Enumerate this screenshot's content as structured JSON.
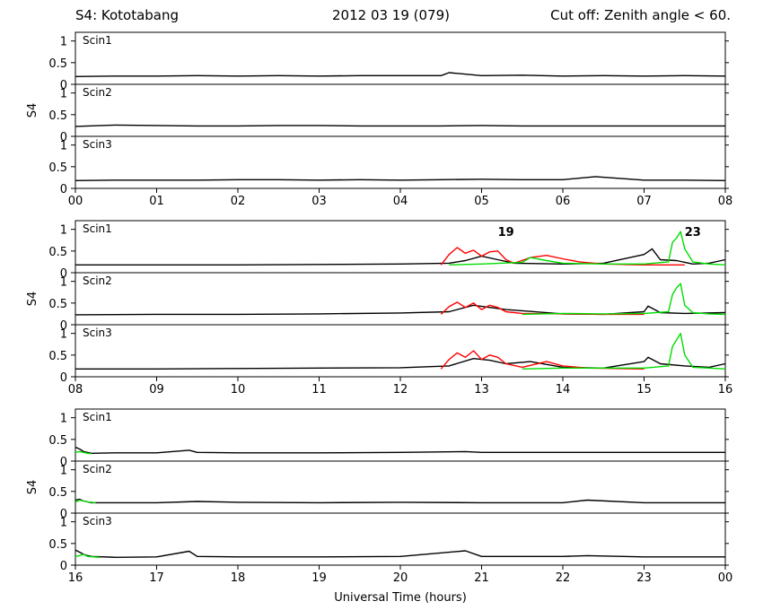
{
  "header": {
    "station": "S4: Kototabang",
    "date": "2012 03 19 (079)",
    "cutoff": "Cut off: Zenith angle < 60."
  },
  "chart_data": {
    "type": "line",
    "ylabel": "S4",
    "xlabel": "Universal Time (hours)",
    "ylim": [
      0,
      1.2
    ],
    "yticks": [
      "0",
      "0.5",
      "1"
    ],
    "colors": {
      "baseline": "#000000",
      "prn19": "#ff0000",
      "prn23": "#00dd00"
    },
    "blocks": [
      {
        "xticks": [
          "00",
          "01",
          "02",
          "03",
          "04",
          "05",
          "06",
          "07",
          "08"
        ],
        "xrange": [
          0,
          8
        ],
        "panels": [
          {
            "label": "Scin1",
            "series": [
              {
                "name": "",
                "color": "#000000",
                "x": [
                  0,
                  0.5,
                  1,
                  1.5,
                  2,
                  2.5,
                  3,
                  3.5,
                  4,
                  4.5,
                  4.6,
                  5,
                  5.5,
                  6,
                  6.5,
                  7,
                  7.5,
                  8
                ],
                "y": [
                  0.18,
                  0.19,
                  0.19,
                  0.2,
                  0.19,
                  0.2,
                  0.19,
                  0.2,
                  0.2,
                  0.2,
                  0.27,
                  0.2,
                  0.21,
                  0.19,
                  0.2,
                  0.19,
                  0.2,
                  0.19
                ]
              }
            ]
          },
          {
            "label": "Scin2",
            "series": [
              {
                "name": "",
                "color": "#000000",
                "x": [
                  0,
                  0.5,
                  1,
                  1.5,
                  2,
                  2.5,
                  3,
                  3.5,
                  4,
                  4.5,
                  5,
                  5.5,
                  6,
                  6.5,
                  7,
                  7.5,
                  8
                ],
                "y": [
                  0.23,
                  0.26,
                  0.25,
                  0.24,
                  0.24,
                  0.25,
                  0.25,
                  0.24,
                  0.24,
                  0.24,
                  0.25,
                  0.24,
                  0.24,
                  0.24,
                  0.24,
                  0.24,
                  0.24
                ]
              }
            ]
          },
          {
            "label": "Scin3",
            "series": [
              {
                "name": "",
                "color": "#000000",
                "x": [
                  0,
                  0.5,
                  1,
                  1.5,
                  2,
                  2.5,
                  3,
                  3.5,
                  4,
                  4.5,
                  5,
                  5.5,
                  6,
                  6.4,
                  7,
                  7.5,
                  8
                ],
                "y": [
                  0.18,
                  0.19,
                  0.19,
                  0.19,
                  0.2,
                  0.2,
                  0.19,
                  0.2,
                  0.19,
                  0.2,
                  0.21,
                  0.2,
                  0.2,
                  0.27,
                  0.19,
                  0.19,
                  0.18
                ]
              }
            ]
          }
        ]
      },
      {
        "xticks": [
          "08",
          "09",
          "10",
          "11",
          "12",
          "13",
          "14",
          "15",
          "16"
        ],
        "xrange": [
          8,
          16
        ],
        "annotations": [
          {
            "text": "19",
            "color": "#ff0000",
            "x": 13.2,
            "y": 0.85
          },
          {
            "text": "23",
            "color": "#00dd00",
            "x": 15.5,
            "y": 0.85
          }
        ],
        "panels": [
          {
            "label": "Scin1",
            "series": [
              {
                "name": "",
                "color": "#000000",
                "x": [
                  8,
                  9,
                  10,
                  11,
                  12,
                  12.6,
                  12.8,
                  13,
                  13.2,
                  13.4,
                  14,
                  14.5,
                  15,
                  15.1,
                  15.2,
                  15.4,
                  15.6,
                  15.8,
                  16
                ],
                "y": [
                  0.18,
                  0.18,
                  0.18,
                  0.19,
                  0.2,
                  0.22,
                  0.28,
                  0.38,
                  0.3,
                  0.22,
                  0.2,
                  0.22,
                  0.42,
                  0.55,
                  0.3,
                  0.28,
                  0.2,
                  0.22,
                  0.3
                ]
              },
              {
                "name": "",
                "color": "#ff0000",
                "x": [
                  12.5,
                  12.6,
                  12.7,
                  12.8,
                  12.9,
                  13,
                  13.1,
                  13.2,
                  13.3,
                  13.4,
                  13.6,
                  13.8,
                  14,
                  14.2,
                  14.5,
                  15,
                  15.5
                ],
                "y": [
                  0.18,
                  0.42,
                  0.58,
                  0.45,
                  0.52,
                  0.38,
                  0.48,
                  0.5,
                  0.3,
                  0.22,
                  0.35,
                  0.4,
                  0.32,
                  0.25,
                  0.2,
                  0.18,
                  0.18
                ]
              },
              {
                "name": "",
                "color": "#00dd00",
                "x": [
                  12.6,
                  13,
                  13.5,
                  13.6,
                  13.8,
                  14,
                  14.5,
                  15,
                  15.3,
                  15.35,
                  15.4,
                  15.45,
                  15.5,
                  15.6,
                  15.8,
                  16
                ],
                "y": [
                  0.18,
                  0.2,
                  0.24,
                  0.35,
                  0.28,
                  0.22,
                  0.2,
                  0.2,
                  0.25,
                  0.7,
                  0.8,
                  0.95,
                  0.55,
                  0.25,
                  0.2,
                  0.18
                ]
              }
            ]
          },
          {
            "label": "Scin2",
            "series": [
              {
                "name": "",
                "color": "#000000",
                "x": [
                  8,
                  9,
                  10,
                  11,
                  12,
                  12.6,
                  12.9,
                  13.1,
                  13.3,
                  14,
                  14.5,
                  15,
                  15.05,
                  15.2,
                  15.5,
                  16
                ],
                "y": [
                  0.23,
                  0.24,
                  0.24,
                  0.25,
                  0.27,
                  0.3,
                  0.45,
                  0.4,
                  0.35,
                  0.25,
                  0.24,
                  0.3,
                  0.43,
                  0.28,
                  0.26,
                  0.28
                ]
              },
              {
                "name": "",
                "color": "#ff0000",
                "x": [
                  12.5,
                  12.6,
                  12.7,
                  12.8,
                  12.9,
                  13,
                  13.1,
                  13.2,
                  13.3,
                  13.5,
                  14,
                  14.5,
                  15
                ],
                "y": [
                  0.24,
                  0.42,
                  0.52,
                  0.4,
                  0.5,
                  0.35,
                  0.45,
                  0.4,
                  0.3,
                  0.26,
                  0.25,
                  0.24,
                  0.24
                ]
              },
              {
                "name": "",
                "color": "#00dd00",
                "x": [
                  13.5,
                  14,
                  14.5,
                  15,
                  15.3,
                  15.35,
                  15.4,
                  15.45,
                  15.5,
                  15.6,
                  15.8,
                  16
                ],
                "y": [
                  0.24,
                  0.26,
                  0.25,
                  0.26,
                  0.3,
                  0.7,
                  0.85,
                  0.95,
                  0.45,
                  0.28,
                  0.25,
                  0.24
                ]
              }
            ]
          },
          {
            "label": "Scin3",
            "series": [
              {
                "name": "",
                "color": "#000000",
                "x": [
                  8,
                  9,
                  10,
                  11,
                  12,
                  12.6,
                  12.9,
                  13.1,
                  13.3,
                  13.6,
                  14,
                  14.5,
                  15,
                  15.05,
                  15.2,
                  15.5,
                  15.8,
                  16
                ],
                "y": [
                  0.18,
                  0.18,
                  0.19,
                  0.2,
                  0.21,
                  0.25,
                  0.42,
                  0.38,
                  0.3,
                  0.35,
                  0.22,
                  0.2,
                  0.35,
                  0.45,
                  0.3,
                  0.25,
                  0.22,
                  0.3
                ]
              },
              {
                "name": "",
                "color": "#ff0000",
                "x": [
                  12.5,
                  12.6,
                  12.7,
                  12.8,
                  12.9,
                  13,
                  13.1,
                  13.2,
                  13.3,
                  13.5,
                  13.8,
                  14,
                  14.3,
                  15
                ],
                "y": [
                  0.18,
                  0.4,
                  0.55,
                  0.45,
                  0.6,
                  0.4,
                  0.5,
                  0.45,
                  0.3,
                  0.22,
                  0.35,
                  0.25,
                  0.2,
                  0.18
                ]
              },
              {
                "name": "",
                "color": "#00dd00",
                "x": [
                  13.5,
                  14,
                  14.5,
                  15,
                  15.3,
                  15.35,
                  15.4,
                  15.45,
                  15.5,
                  15.6,
                  15.8,
                  16
                ],
                "y": [
                  0.18,
                  0.2,
                  0.2,
                  0.2,
                  0.25,
                  0.7,
                  0.85,
                  1.0,
                  0.5,
                  0.22,
                  0.2,
                  0.18
                ]
              }
            ]
          }
        ]
      },
      {
        "xticks": [
          "16",
          "17",
          "18",
          "19",
          "20",
          "21",
          "22",
          "23",
          "00"
        ],
        "xrange": [
          16,
          24
        ],
        "panels": [
          {
            "label": "Scin1",
            "series": [
              {
                "name": "",
                "color": "#000000",
                "x": [
                  16,
                  16.05,
                  16.1,
                  16.2,
                  16.5,
                  17,
                  17.4,
                  17.5,
                  18,
                  19,
                  20,
                  20.8,
                  21,
                  22,
                  23,
                  24
                ],
                "y": [
                  0.32,
                  0.28,
                  0.22,
                  0.18,
                  0.19,
                  0.19,
                  0.25,
                  0.2,
                  0.19,
                  0.19,
                  0.2,
                  0.22,
                  0.2,
                  0.2,
                  0.2,
                  0.2
                ]
              },
              {
                "name": "",
                "color": "#00dd00",
                "x": [
                  16,
                  16.05,
                  16.1,
                  16.15,
                  16.2
                ],
                "y": [
                  0.2,
                  0.22,
                  0.2,
                  0.18,
                  0.17
                ]
              }
            ]
          },
          {
            "label": "Scin2",
            "series": [
              {
                "name": "",
                "color": "#000000",
                "x": [
                  16,
                  16.05,
                  16.1,
                  16.2,
                  17,
                  17.5,
                  18,
                  19,
                  20,
                  21,
                  22,
                  22.3,
                  23,
                  24
                ],
                "y": [
                  0.3,
                  0.32,
                  0.28,
                  0.24,
                  0.24,
                  0.27,
                  0.25,
                  0.24,
                  0.25,
                  0.24,
                  0.24,
                  0.3,
                  0.24,
                  0.24
                ]
              },
              {
                "name": "",
                "color": "#00dd00",
                "x": [
                  16,
                  16.05,
                  16.1,
                  16.15,
                  16.25
                ],
                "y": [
                  0.25,
                  0.3,
                  0.28,
                  0.26,
                  0.24
                ]
              }
            ]
          },
          {
            "label": "Scin3",
            "series": [
              {
                "name": "",
                "color": "#000000",
                "x": [
                  16,
                  16.05,
                  16.1,
                  16.15,
                  16.2,
                  16.5,
                  17,
                  17.4,
                  17.5,
                  18,
                  19,
                  20,
                  20.8,
                  21,
                  22,
                  22.3,
                  23,
                  24
                ],
                "y": [
                  0.35,
                  0.3,
                  0.25,
                  0.22,
                  0.2,
                  0.18,
                  0.19,
                  0.32,
                  0.2,
                  0.19,
                  0.19,
                  0.2,
                  0.33,
                  0.2,
                  0.2,
                  0.22,
                  0.19,
                  0.19
                ]
              },
              {
                "name": "",
                "color": "#00dd00",
                "x": [
                  16,
                  16.05,
                  16.1,
                  16.15,
                  16.3
                ],
                "y": [
                  0.2,
                  0.22,
                  0.25,
                  0.2,
                  0.18
                ]
              }
            ]
          }
        ]
      }
    ]
  }
}
